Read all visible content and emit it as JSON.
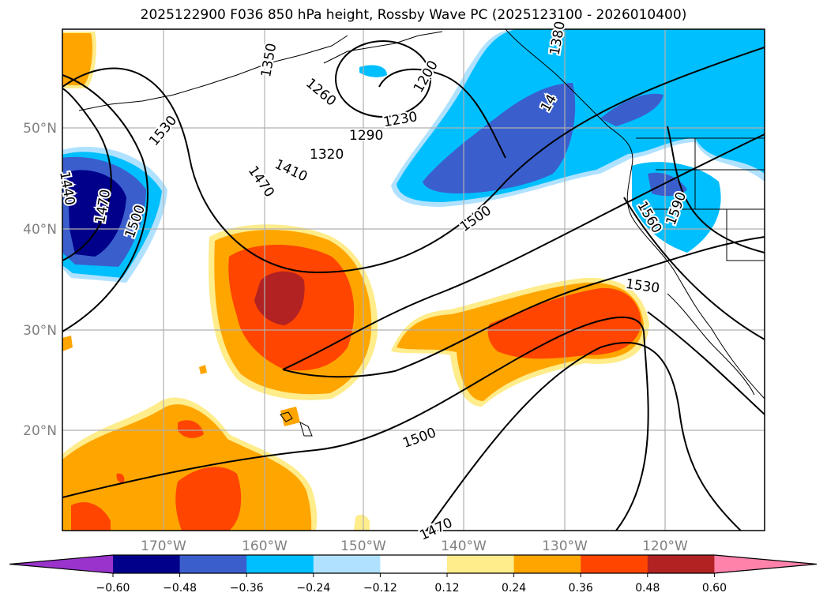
{
  "title": "2025122900 F036 850 hPa height, Rossby Wave PC (2025123100 - 2026010400)",
  "lat_labels": [
    "50°N",
    "40°N",
    "30°N",
    "20°N"
  ],
  "lon_labels": [
    "170°W",
    "160°W",
    "150°W",
    "140°W",
    "130°W",
    "120°W"
  ],
  "colorbar": {
    "ticks": [
      "−0.60",
      "−0.48",
      "−0.36",
      "−0.24",
      "−0.12",
      "0.12",
      "0.24",
      "0.36",
      "0.48",
      "0.60"
    ],
    "colors": [
      "#9933cc",
      "#00008b",
      "#3a5fcd",
      "#00bfff",
      "#b0e2ff",
      "#ffffff",
      "#ffec8b",
      "#ffa500",
      "#ff4500",
      "#b22222",
      "#ff82ab"
    ]
  },
  "contour_labels": [
    "1530",
    "1260",
    "1230",
    "1200",
    "1290",
    "1320",
    "1410",
    "1470",
    "1500",
    "1440",
    "1470",
    "1500",
    "1560",
    "1590",
    "1530",
    "1500",
    "1470",
    "1350",
    "1380",
    "14"
  ]
}
